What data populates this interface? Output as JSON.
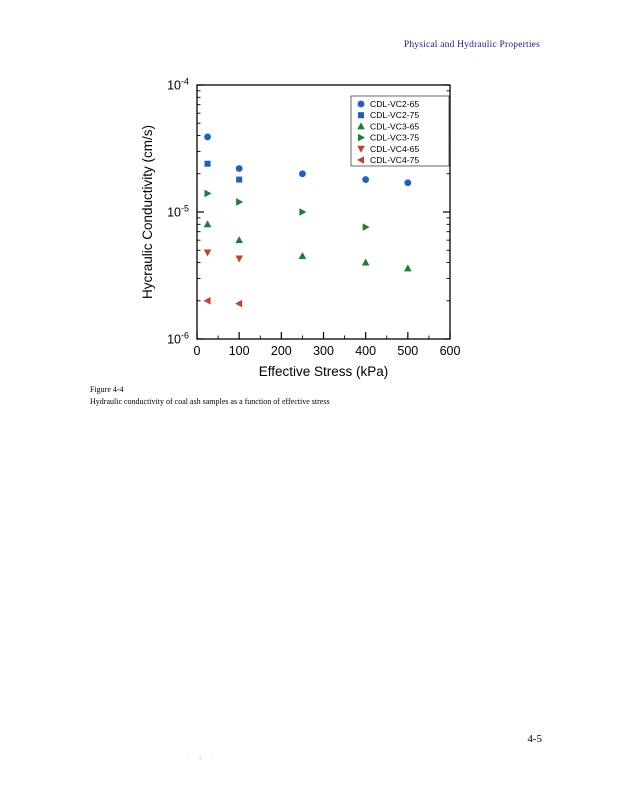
{
  "page": {
    "header": "Physical and Hydraulic Properties",
    "page_number": "4-5",
    "footer_marks": "· ; ·"
  },
  "figure": {
    "caption_label": "Figure 4-4",
    "caption_text": "Hydraulic conductivity of coal ash samples as a function of effective stress"
  },
  "chart_data": {
    "type": "scatter",
    "xlabel": "Effective Stress (kPa)",
    "ylabel": "Hycraulic Conductivity (cm/s)",
    "x_range": [
      0,
      600
    ],
    "x_ticks": [
      0,
      100,
      200,
      300,
      400,
      500,
      600
    ],
    "y_scale": "log",
    "y_range": [
      1e-06,
      0.0001
    ],
    "y_tick_exponents": [
      -4,
      -5,
      -6
    ],
    "grid": false,
    "legend_position": "top-right-inside",
    "series": [
      {
        "name": "CDL-VC2-65",
        "marker": "circle",
        "color": "#1f5fc4",
        "points": [
          [
            25,
            3.9e-05
          ],
          [
            100,
            2.2e-05
          ],
          [
            250,
            2e-05
          ],
          [
            400,
            1.8e-05
          ],
          [
            500,
            1.7e-05
          ]
        ]
      },
      {
        "name": "CDL-VC2-75",
        "marker": "square",
        "color": "#1f5fc4",
        "points": [
          [
            25,
            2.4e-05
          ],
          [
            100,
            1.8e-05
          ]
        ]
      },
      {
        "name": "CDL-VC3-65",
        "marker": "triangle-up",
        "color": "#1e7d32",
        "points": [
          [
            25,
            8e-06
          ],
          [
            100,
            6e-06
          ],
          [
            250,
            4.5e-06
          ],
          [
            400,
            4e-06
          ],
          [
            500,
            3.6e-06
          ]
        ]
      },
      {
        "name": "CDL-VC3-75",
        "marker": "triangle-right",
        "color": "#1e7d32",
        "points": [
          [
            25,
            1.4e-05
          ],
          [
            100,
            1.2e-05
          ],
          [
            250,
            1e-05
          ],
          [
            400,
            7.6e-06
          ]
        ]
      },
      {
        "name": "CDL-VC4-65",
        "marker": "triangle-down",
        "color": "#c0442a",
        "points": [
          [
            25,
            4.8e-06
          ],
          [
            100,
            4.3e-06
          ]
        ]
      },
      {
        "name": "CDL-VC4-75",
        "marker": "triangle-left",
        "color": "#c0442a",
        "points": [
          [
            25,
            2e-06
          ],
          [
            100,
            1.9e-06
          ]
        ]
      }
    ]
  }
}
